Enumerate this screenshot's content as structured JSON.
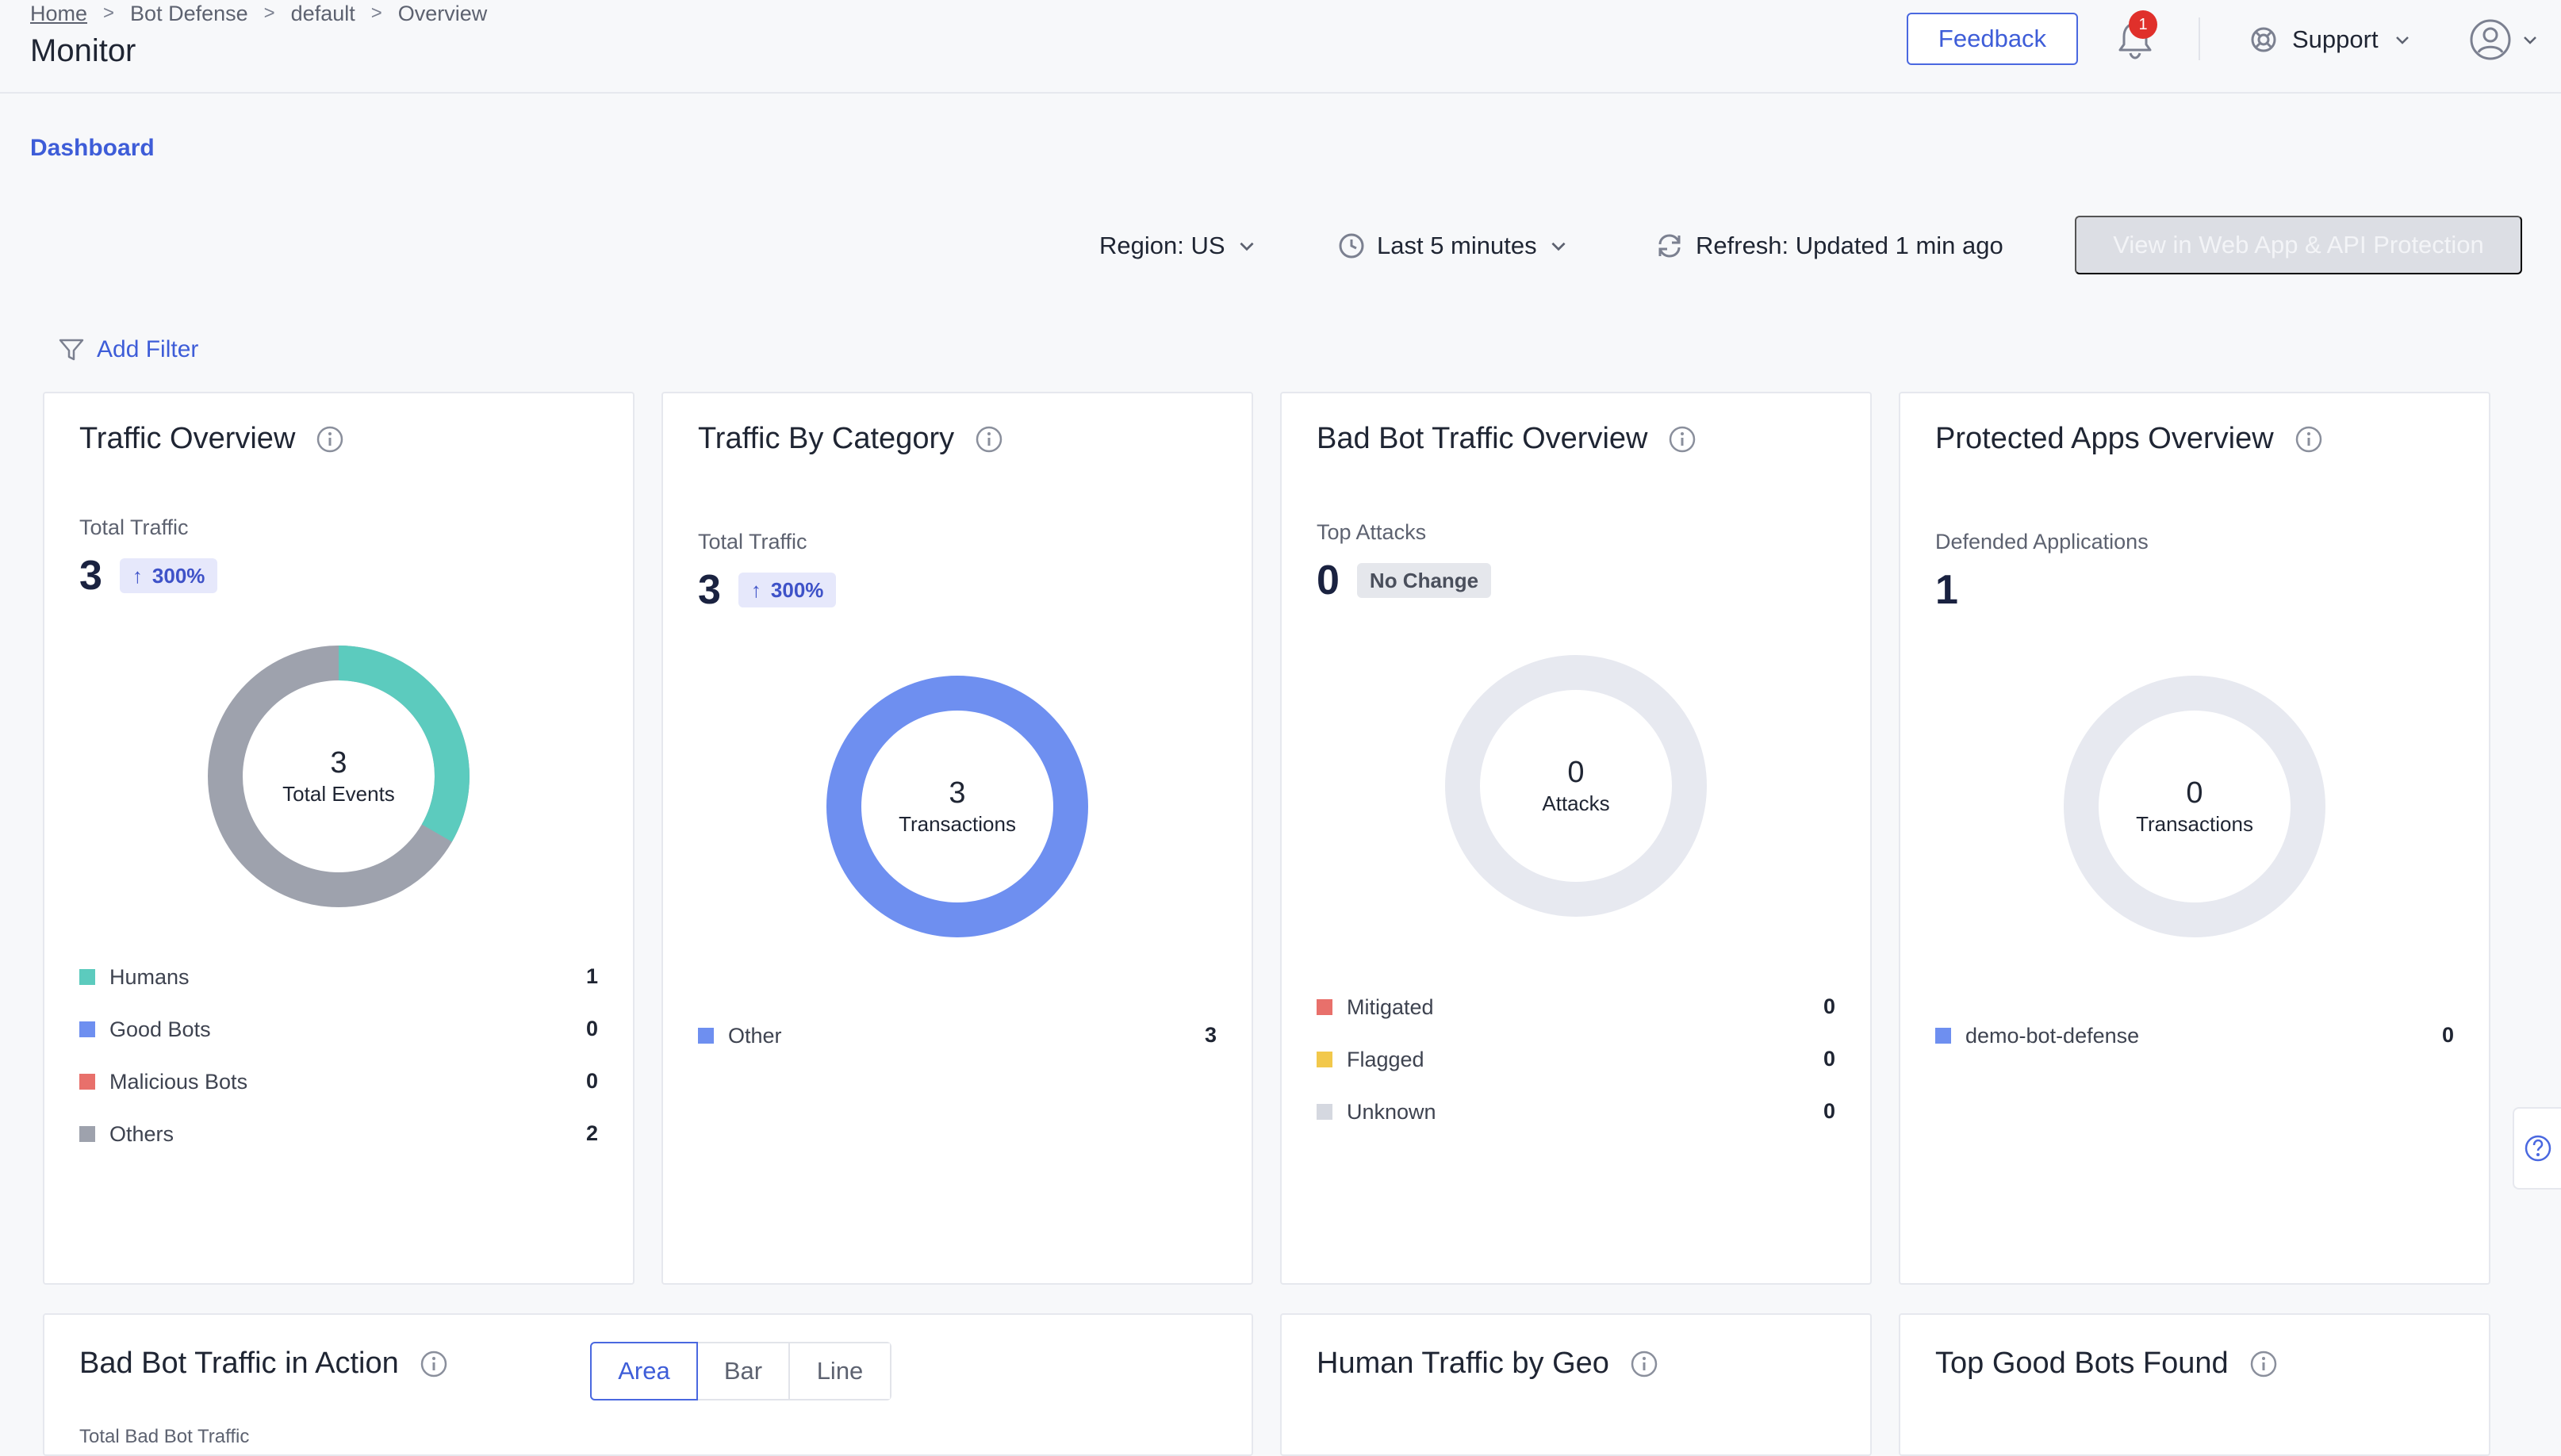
{
  "breadcrumb": {
    "home": "Home",
    "item1": "Bot Defense",
    "item2": "default",
    "item3": "Overview"
  },
  "page_title": "Monitor",
  "header": {
    "feedback_label": "Feedback",
    "notification_count": "1",
    "support_label": "Support"
  },
  "dashboard_tab": "Dashboard",
  "toolbar": {
    "region_label": "Region: US",
    "time_label": "Last 5 minutes",
    "refresh_label": "Refresh: Updated 1 min ago",
    "view_button_label": "View in Web App & API Protection"
  },
  "add_filter_label": "Add Filter",
  "cards": {
    "traffic_overview": {
      "title": "Traffic Overview",
      "metric_label": "Total Traffic",
      "metric_value": "3",
      "change": "300%",
      "donut_value": "3",
      "donut_label": "Total Events",
      "legend": [
        {
          "name": "Humans",
          "value": "1",
          "color": "#5ccbbe"
        },
        {
          "name": "Good Bots",
          "value": "0",
          "color": "#6e8ff0"
        },
        {
          "name": "Malicious Bots",
          "value": "0",
          "color": "#e8706b"
        },
        {
          "name": "Others",
          "value": "2",
          "color": "#9ea2ad"
        }
      ]
    },
    "traffic_by_category": {
      "title": "Traffic By Category",
      "metric_label": "Total Traffic",
      "metric_value": "3",
      "change": "300%",
      "donut_value": "3",
      "donut_label": "Transactions",
      "legend": [
        {
          "name": "Other",
          "value": "3",
          "color": "#6e8ff0"
        }
      ]
    },
    "bad_bot_overview": {
      "title": "Bad Bot Traffic Overview",
      "metric_label": "Top Attacks",
      "metric_value": "0",
      "change": "No Change",
      "donut_value": "0",
      "donut_label": "Attacks",
      "legend": [
        {
          "name": "Mitigated",
          "value": "0",
          "color": "#e8706b"
        },
        {
          "name": "Flagged",
          "value": "0",
          "color": "#f2c84b"
        },
        {
          "name": "Unknown",
          "value": "0",
          "color": "#d5d8e0"
        }
      ]
    },
    "protected_apps": {
      "title": "Protected Apps Overview",
      "metric_label": "Defended Applications",
      "metric_value": "1",
      "donut_value": "0",
      "donut_label": "Transactions",
      "legend": [
        {
          "name": "demo-bot-defense",
          "value": "0",
          "color": "#6e8ff0"
        }
      ]
    },
    "bad_bot_action": {
      "title": "Bad Bot Traffic in Action",
      "tabs": [
        "Area",
        "Bar",
        "Line"
      ],
      "cut_off_label": "Total Bad Bot Traffic"
    },
    "human_geo": {
      "title": "Human Traffic by Geo"
    },
    "top_good_bots": {
      "title": "Top Good Bots Found"
    }
  }
}
